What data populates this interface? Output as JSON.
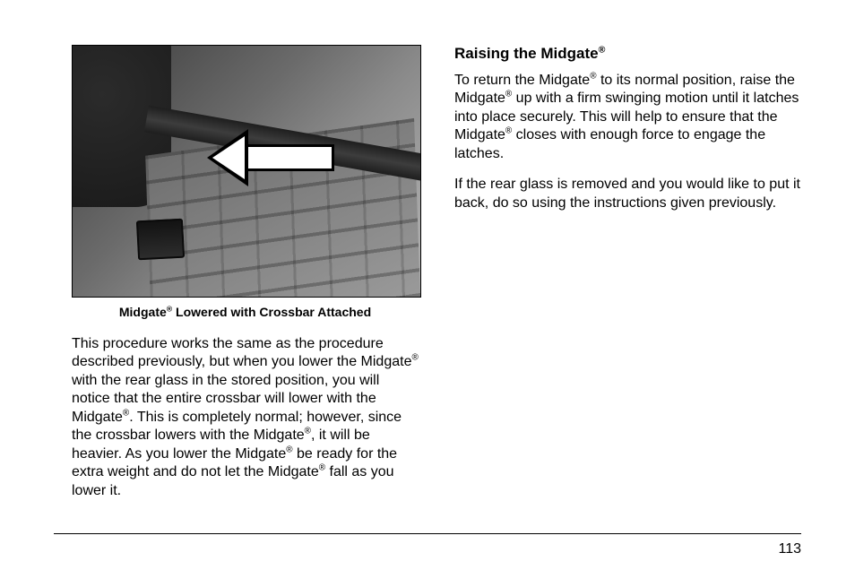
{
  "figure": {
    "caption_prefix": "Midgate",
    "caption_suffix": " Lowered with Crossbar Attached",
    "reg_mark": "®",
    "arrow_semantic": "left-arrow"
  },
  "left_para": {
    "t1": "This procedure works the same as the procedure described previously, but when you lower the Midgate",
    "t2": " with the rear glass in the stored position, you will notice that the entire crossbar will lower with the Midgate",
    "t3": ". This is completely normal; however, since the crossbar lowers with the Midgate",
    "t4": ", it will be heavier. As you lower the Midgate",
    "t5": " be ready for the extra weight and do not let the Midgate",
    "t6": " fall as you lower it."
  },
  "right": {
    "heading_prefix": "Raising the Midgate",
    "p1a": "To return the Midgate",
    "p1b": " to its normal position, raise the Midgate",
    "p1c": " up with a firm swinging motion until it latches into place securely. This will help to ensure that the Midgate",
    "p1d": " closes with enough force to engage the latches.",
    "p2": "If the rear glass is removed and you would like to put it back, do so using the instructions given previously."
  },
  "page_number": "113",
  "reg": "®"
}
